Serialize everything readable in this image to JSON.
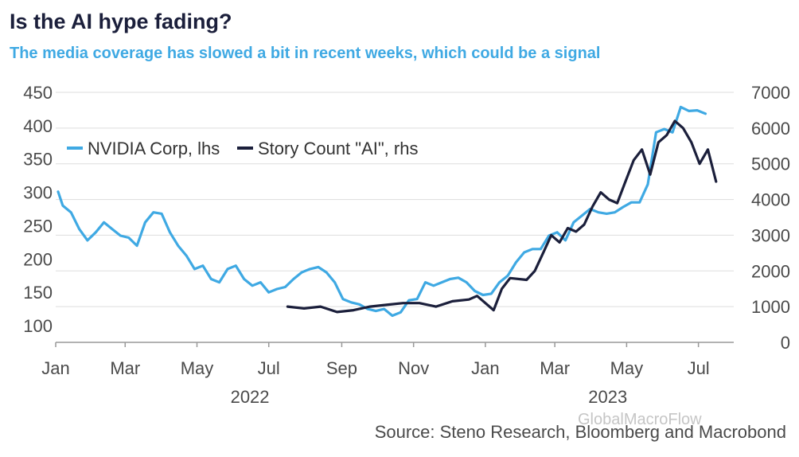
{
  "title": "Is the AI hype fading?",
  "subtitle": "The media coverage has slowed a bit in recent weeks, which could be a signal",
  "source": "Source: Steno Research, Bloomberg and Macrobond",
  "watermark": "GlobalMacroFlow",
  "colors": {
    "nvidia": "#3fa9e3",
    "stories": "#1b1f3b",
    "grid": "#dddddd",
    "axis": "#999999"
  },
  "chart_data": {
    "type": "line",
    "title": "Is the AI hype fading?",
    "grid": true,
    "legend_position": "top-left",
    "x_range": [
      "2022-01-01",
      "2023-07-31"
    ],
    "x_tick_labels": [
      "Jan",
      "Mar",
      "May",
      "Jul",
      "Sep",
      "Nov",
      "Jan",
      "Mar",
      "May",
      "Jul"
    ],
    "x_tick_dates": [
      "2022-01-01",
      "2022-03-01",
      "2022-05-01",
      "2022-07-01",
      "2022-09-01",
      "2022-11-01",
      "2023-01-01",
      "2023-03-01",
      "2023-05-01",
      "2023-07-01"
    ],
    "year_labels": [
      {
        "label": "2022",
        "date": "2022-06-15"
      },
      {
        "label": "2023",
        "date": "2023-04-15"
      }
    ],
    "y_left": {
      "ylim": [
        75,
        450
      ],
      "ticks": [
        100,
        150,
        200,
        250,
        300,
        350,
        400,
        450
      ]
    },
    "y_right": {
      "ylim": [
        0,
        7000
      ],
      "ticks": [
        0,
        1000,
        2000,
        3000,
        4000,
        5000,
        6000,
        7000
      ]
    },
    "series": [
      {
        "name": "NVIDIA Corp, lhs",
        "axis": "left",
        "points": [
          [
            "2022-01-03",
            301
          ],
          [
            "2022-01-07",
            280
          ],
          [
            "2022-01-14",
            270
          ],
          [
            "2022-01-21",
            245
          ],
          [
            "2022-01-28",
            228
          ],
          [
            "2022-02-04",
            240
          ],
          [
            "2022-02-11",
            255
          ],
          [
            "2022-02-18",
            245
          ],
          [
            "2022-02-25",
            235
          ],
          [
            "2022-03-04",
            232
          ],
          [
            "2022-03-11",
            220
          ],
          [
            "2022-03-18",
            255
          ],
          [
            "2022-03-25",
            270
          ],
          [
            "2022-04-01",
            268
          ],
          [
            "2022-04-08",
            240
          ],
          [
            "2022-04-15",
            220
          ],
          [
            "2022-04-22",
            205
          ],
          [
            "2022-04-29",
            185
          ],
          [
            "2022-05-06",
            190
          ],
          [
            "2022-05-13",
            170
          ],
          [
            "2022-05-20",
            165
          ],
          [
            "2022-05-27",
            185
          ],
          [
            "2022-06-03",
            190
          ],
          [
            "2022-06-10",
            170
          ],
          [
            "2022-06-17",
            160
          ],
          [
            "2022-06-24",
            165
          ],
          [
            "2022-07-01",
            150
          ],
          [
            "2022-07-08",
            155
          ],
          [
            "2022-07-15",
            158
          ],
          [
            "2022-07-22",
            170
          ],
          [
            "2022-07-29",
            180
          ],
          [
            "2022-08-05",
            185
          ],
          [
            "2022-08-12",
            188
          ],
          [
            "2022-08-19",
            180
          ],
          [
            "2022-08-26",
            165
          ],
          [
            "2022-09-02",
            140
          ],
          [
            "2022-09-09",
            135
          ],
          [
            "2022-09-16",
            132
          ],
          [
            "2022-09-23",
            125
          ],
          [
            "2022-09-30",
            122
          ],
          [
            "2022-10-07",
            125
          ],
          [
            "2022-10-14",
            115
          ],
          [
            "2022-10-21",
            120
          ],
          [
            "2022-10-28",
            138
          ],
          [
            "2022-11-04",
            140
          ],
          [
            "2022-11-11",
            165
          ],
          [
            "2022-11-18",
            160
          ],
          [
            "2022-11-25",
            165
          ],
          [
            "2022-12-02",
            170
          ],
          [
            "2022-12-09",
            172
          ],
          [
            "2022-12-16",
            165
          ],
          [
            "2022-12-23",
            152
          ],
          [
            "2022-12-30",
            146
          ],
          [
            "2023-01-06",
            148
          ],
          [
            "2023-01-13",
            165
          ],
          [
            "2023-01-20",
            175
          ],
          [
            "2023-01-27",
            195
          ],
          [
            "2023-02-03",
            210
          ],
          [
            "2023-02-10",
            215
          ],
          [
            "2023-02-17",
            215
          ],
          [
            "2023-02-24",
            235
          ],
          [
            "2023-03-03",
            240
          ],
          [
            "2023-03-10",
            228
          ],
          [
            "2023-03-17",
            255
          ],
          [
            "2023-03-24",
            265
          ],
          [
            "2023-03-31",
            275
          ],
          [
            "2023-04-07",
            270
          ],
          [
            "2023-04-14",
            268
          ],
          [
            "2023-04-21",
            270
          ],
          [
            "2023-04-28",
            278
          ],
          [
            "2023-05-05",
            285
          ],
          [
            "2023-05-12",
            285
          ],
          [
            "2023-05-19",
            312
          ],
          [
            "2023-05-26",
            390
          ],
          [
            "2023-06-02",
            395
          ],
          [
            "2023-06-09",
            390
          ],
          [
            "2023-06-16",
            428
          ],
          [
            "2023-06-23",
            422
          ],
          [
            "2023-06-30",
            423
          ],
          [
            "2023-07-07",
            418
          ]
        ]
      },
      {
        "name": "Story Count \"AI\", rhs",
        "axis": "right",
        "points": [
          [
            "2022-07-17",
            1000
          ],
          [
            "2022-07-31",
            950
          ],
          [
            "2022-08-14",
            1000
          ],
          [
            "2022-08-28",
            850
          ],
          [
            "2022-09-11",
            900
          ],
          [
            "2022-09-25",
            1000
          ],
          [
            "2022-10-09",
            1050
          ],
          [
            "2022-10-23",
            1100
          ],
          [
            "2022-11-06",
            1100
          ],
          [
            "2022-11-20",
            1000
          ],
          [
            "2022-12-04",
            1150
          ],
          [
            "2022-12-18",
            1200
          ],
          [
            "2022-12-25",
            1300
          ],
          [
            "2023-01-08",
            900
          ],
          [
            "2023-01-15",
            1500
          ],
          [
            "2023-01-22",
            1800
          ],
          [
            "2023-02-05",
            1750
          ],
          [
            "2023-02-12",
            2000
          ],
          [
            "2023-02-19",
            2500
          ],
          [
            "2023-02-26",
            3000
          ],
          [
            "2023-03-05",
            2800
          ],
          [
            "2023-03-12",
            3200
          ],
          [
            "2023-03-19",
            3100
          ],
          [
            "2023-03-26",
            3300
          ],
          [
            "2023-04-02",
            3800
          ],
          [
            "2023-04-09",
            4200
          ],
          [
            "2023-04-16",
            4000
          ],
          [
            "2023-04-23",
            3900
          ],
          [
            "2023-04-30",
            4500
          ],
          [
            "2023-05-07",
            5100
          ],
          [
            "2023-05-14",
            5400
          ],
          [
            "2023-05-21",
            4700
          ],
          [
            "2023-05-28",
            5600
          ],
          [
            "2023-06-04",
            5800
          ],
          [
            "2023-06-11",
            6200
          ],
          [
            "2023-06-18",
            6000
          ],
          [
            "2023-06-25",
            5600
          ],
          [
            "2023-07-02",
            5000
          ],
          [
            "2023-07-09",
            5400
          ],
          [
            "2023-07-16",
            4500
          ]
        ]
      }
    ]
  }
}
